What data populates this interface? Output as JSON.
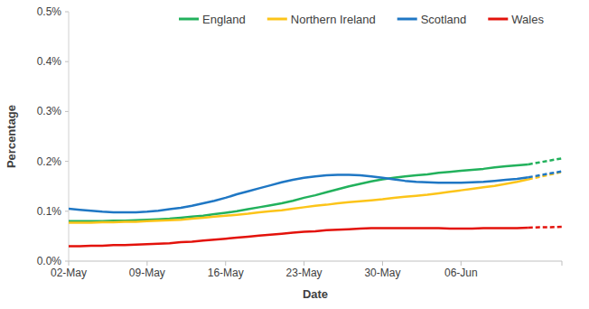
{
  "chart_data": {
    "type": "line",
    "x_label": "Date",
    "y_label": "Percentage",
    "categories": [
      "02-May",
      null,
      null,
      null,
      null,
      null,
      null,
      "09-May",
      null,
      null,
      null,
      null,
      null,
      null,
      "16-May",
      null,
      null,
      null,
      null,
      null,
      null,
      "23-May",
      null,
      null,
      null,
      null,
      null,
      null,
      "30-May",
      null,
      null,
      null,
      null,
      null,
      null,
      "06-Jun",
      null,
      null,
      null,
      null,
      null,
      null,
      null,
      null,
      null
    ],
    "series": [
      {
        "name": "England",
        "color": "#22b15c",
        "values": [
          0.08,
          0.08,
          0.08,
          0.08,
          0.081,
          0.081,
          0.082,
          0.083,
          0.084,
          0.085,
          0.087,
          0.089,
          0.091,
          0.094,
          0.097,
          0.1,
          0.104,
          0.108,
          0.112,
          0.116,
          0.121,
          0.127,
          0.132,
          0.138,
          0.144,
          0.15,
          0.155,
          0.16,
          0.164,
          0.167,
          0.17,
          0.172,
          0.174,
          0.177,
          0.179,
          0.181,
          0.183,
          0.185,
          0.188,
          0.19,
          0.192,
          0.194,
          null,
          null,
          null
        ],
        "projection": [
          null,
          null,
          null,
          null,
          null,
          null,
          null,
          null,
          null,
          null,
          null,
          null,
          null,
          null,
          null,
          null,
          null,
          null,
          null,
          null,
          null,
          null,
          null,
          null,
          null,
          null,
          null,
          null,
          null,
          null,
          null,
          null,
          null,
          null,
          null,
          null,
          null,
          null,
          null,
          null,
          null,
          0.194,
          0.198,
          0.202,
          0.206
        ]
      },
      {
        "name": "Northern Ireland",
        "color": "#fcc419",
        "values": [
          0.077,
          0.077,
          0.077,
          0.078,
          0.078,
          0.079,
          0.079,
          0.08,
          0.081,
          0.082,
          0.083,
          0.085,
          0.087,
          0.089,
          0.091,
          0.093,
          0.095,
          0.098,
          0.1,
          0.102,
          0.105,
          0.108,
          0.111,
          0.113,
          0.116,
          0.118,
          0.12,
          0.122,
          0.124,
          0.127,
          0.129,
          0.131,
          0.133,
          0.136,
          0.139,
          0.142,
          0.145,
          0.148,
          0.151,
          0.155,
          0.159,
          0.164,
          null,
          null,
          null
        ],
        "projection": [
          null,
          null,
          null,
          null,
          null,
          null,
          null,
          null,
          null,
          null,
          null,
          null,
          null,
          null,
          null,
          null,
          null,
          null,
          null,
          null,
          null,
          null,
          null,
          null,
          null,
          null,
          null,
          null,
          null,
          null,
          null,
          null,
          null,
          null,
          null,
          null,
          null,
          null,
          null,
          null,
          null,
          0.164,
          0.169,
          0.174,
          0.179
        ]
      },
      {
        "name": "Scotland",
        "color": "#1f77c4",
        "values": [
          0.105,
          0.103,
          0.101,
          0.099,
          0.098,
          0.098,
          0.098,
          0.099,
          0.101,
          0.104,
          0.107,
          0.111,
          0.116,
          0.121,
          0.127,
          0.134,
          0.14,
          0.146,
          0.152,
          0.158,
          0.163,
          0.167,
          0.17,
          0.172,
          0.173,
          0.173,
          0.172,
          0.17,
          0.167,
          0.164,
          0.161,
          0.159,
          0.158,
          0.157,
          0.157,
          0.157,
          0.158,
          0.159,
          0.161,
          0.163,
          0.165,
          0.168,
          null,
          null,
          null
        ],
        "projection": [
          null,
          null,
          null,
          null,
          null,
          null,
          null,
          null,
          null,
          null,
          null,
          null,
          null,
          null,
          null,
          null,
          null,
          null,
          null,
          null,
          null,
          null,
          null,
          null,
          null,
          null,
          null,
          null,
          null,
          null,
          null,
          null,
          null,
          null,
          null,
          null,
          null,
          null,
          null,
          null,
          null,
          0.168,
          0.172,
          0.176,
          0.18
        ]
      },
      {
        "name": "Wales",
        "color": "#e3120b",
        "values": [
          0.03,
          0.03,
          0.031,
          0.031,
          0.032,
          0.032,
          0.033,
          0.034,
          0.035,
          0.036,
          0.038,
          0.039,
          0.041,
          0.043,
          0.045,
          0.047,
          0.049,
          0.051,
          0.053,
          0.055,
          0.057,
          0.059,
          0.06,
          0.062,
          0.063,
          0.064,
          0.065,
          0.066,
          0.066,
          0.066,
          0.066,
          0.066,
          0.066,
          0.066,
          0.065,
          0.065,
          0.065,
          0.066,
          0.066,
          0.066,
          0.066,
          0.067,
          null,
          null,
          null
        ],
        "projection": [
          null,
          null,
          null,
          null,
          null,
          null,
          null,
          null,
          null,
          null,
          null,
          null,
          null,
          null,
          null,
          null,
          null,
          null,
          null,
          null,
          null,
          null,
          null,
          null,
          null,
          null,
          null,
          null,
          null,
          null,
          null,
          null,
          null,
          null,
          null,
          null,
          null,
          null,
          null,
          null,
          null,
          0.067,
          0.068,
          0.068,
          0.069
        ]
      }
    ],
    "ylim": [
      0,
      0.5
    ],
    "yticks": [
      {
        "value": 0,
        "label": "0.0%"
      },
      {
        "value": 0.1,
        "label": "0.1%"
      },
      {
        "value": 0.2,
        "label": "0.2%"
      },
      {
        "value": 0.3,
        "label": "0.3%"
      },
      {
        "value": 0.4,
        "label": "0.4%"
      },
      {
        "value": 0.5,
        "label": "0.5%"
      }
    ],
    "grid": false,
    "legend": "top"
  }
}
